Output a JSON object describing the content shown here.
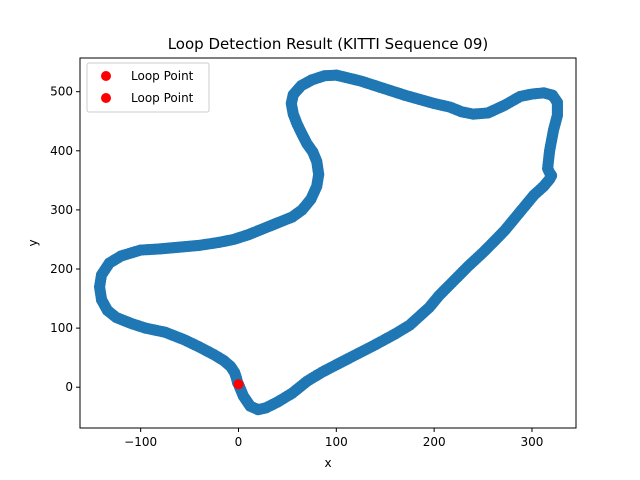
{
  "chart_data": {
    "type": "scatter",
    "title": "Loop Detection Result (KITTI Sequence 09)",
    "xlabel": "x",
    "ylabel": "y",
    "xlim": [
      -162,
      345
    ],
    "ylim": [
      -69,
      557
    ],
    "xticks": [
      -100,
      0,
      100,
      200,
      300
    ],
    "xtick_labels": [
      "−100",
      "0",
      "100",
      "200",
      "300"
    ],
    "yticks": [
      0,
      100,
      200,
      300,
      400,
      500
    ],
    "ytick_labels": [
      "0",
      "100",
      "200",
      "300",
      "400",
      "500"
    ],
    "grid": false,
    "legend": {
      "placement": "top-left",
      "entries": [
        "Loop Point",
        "Loop Point"
      ]
    },
    "series": [
      {
        "color": "#1f77b4",
        "x": [
          0,
          5,
          12,
          20,
          28,
          40,
          55,
          70,
          85,
          100,
          120,
          140,
          160,
          175,
          185,
          195,
          205,
          220,
          235,
          250,
          262,
          272,
          282,
          292,
          302,
          312,
          318,
          320,
          318,
          316,
          318,
          322,
          326,
          326,
          321,
          312,
          300,
          288,
          272,
          255,
          240,
          228,
          216,
          200,
          185,
          170,
          155,
          140,
          125,
          110,
          100,
          88,
          75,
          64,
          56,
          54,
          56,
          60,
          65,
          70,
          76,
          80,
          82,
          80,
          74,
          65,
          55,
          40,
          25,
          10,
          -5,
          -20,
          -40,
          -60,
          -80,
          -100,
          -120,
          -132,
          -140,
          -142,
          -140,
          -134,
          -125,
          -110,
          -95,
          -75,
          -55,
          -40,
          -25,
          -15,
          -8,
          -4,
          -2,
          -1,
          0
        ],
        "y": [
          5,
          -15,
          -32,
          -38,
          -35,
          -25,
          -10,
          10,
          25,
          38,
          55,
          72,
          90,
          105,
          120,
          135,
          155,
          180,
          205,
          228,
          248,
          265,
          285,
          305,
          325,
          340,
          352,
          358,
          363,
          370,
          400,
          435,
          460,
          482,
          494,
          498,
          496,
          492,
          477,
          464,
          462,
          466,
          474,
          480,
          487,
          494,
          502,
          510,
          518,
          524,
          528,
          527,
          520,
          510,
          495,
          480,
          462,
          445,
          428,
          412,
          398,
          382,
          360,
          340,
          318,
          300,
          288,
          278,
          268,
          258,
          250,
          245,
          240,
          237,
          234,
          232,
          222,
          210,
          190,
          170,
          148,
          130,
          118,
          108,
          100,
          93,
          80,
          68,
          55,
          45,
          35,
          25,
          15,
          8,
          5
        ]
      },
      {
        "name": "Loop Point",
        "color": "#ff0000",
        "x": [
          0
        ],
        "y": [
          5
        ]
      },
      {
        "name": "Loop Point",
        "color": "#ff0000",
        "x": [
          0
        ],
        "y": [
          5
        ]
      }
    ]
  }
}
